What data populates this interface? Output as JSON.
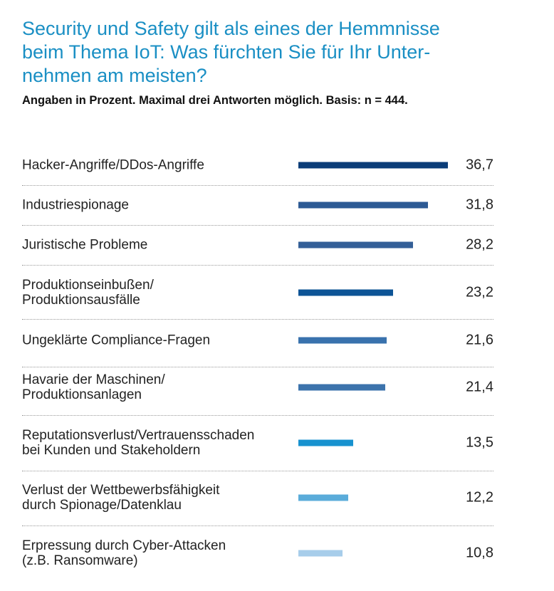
{
  "title": "Security und Safety gilt als eines der Hemmnisse beim Thema IoT: Was fürchten Sie für Ihr Unter-nehmen am meisten?",
  "title_lines": [
    "Security und Safety gilt als eines der Hemmnisse",
    "beim Thema IoT: Was fürchten Sie für Ihr Unter-",
    "nehmen am meisten?"
  ],
  "subtitle": "Angaben in Prozent. Maximal drei Antworten möglich. Basis: n = 444.",
  "chart_data": {
    "type": "bar",
    "orientation": "horizontal",
    "title": "Security und Safety gilt als eines der Hemmnisse beim Thema IoT: Was fürchten Sie für Ihr Unternehmen am meisten?",
    "subtitle": "Angaben in Prozent. Maximal drei Antworten möglich. Basis: n = 444.",
    "xlabel": "",
    "ylabel": "",
    "unit": "%",
    "xlim": [
      0,
      36.7
    ],
    "grid": false,
    "legend": "none",
    "categories": [
      [
        "Hacker-Angriffe/DDos-Angriffe"
      ],
      [
        "Industriespionage"
      ],
      [
        "Juristische Probleme"
      ],
      [
        "Produktionseinbußen/",
        "Produktionsausfälle"
      ],
      [
        "Ungeklärte Compliance-Fragen"
      ],
      [
        "Havarie der Maschinen/",
        "Produktionsanlagen"
      ],
      [
        "Reputationsverlust/Vertrauensschaden",
        "bei Kunden und Stakeholdern"
      ],
      [
        "Verlust der Wettbewerbsfähigkeit",
        "durch Spionage/Datenklau"
      ],
      [
        "Erpressung durch Cyber-Attacken",
        "(z.B. Ransomware)"
      ]
    ],
    "values": [
      36.7,
      31.8,
      28.2,
      23.2,
      21.6,
      21.4,
      13.5,
      12.2,
      10.8
    ],
    "value_labels": [
      "36,7",
      "31,8",
      "28,2",
      "23,2",
      "21,6",
      "21,4",
      "13,5",
      "12,2",
      "10,8"
    ],
    "colors": [
      "#0b3d78",
      "#2d5a94",
      "#345f97",
      "#0d5496",
      "#3972ad",
      "#3c73ac",
      "#1792cf",
      "#5aacda",
      "#a7cdea"
    ]
  }
}
